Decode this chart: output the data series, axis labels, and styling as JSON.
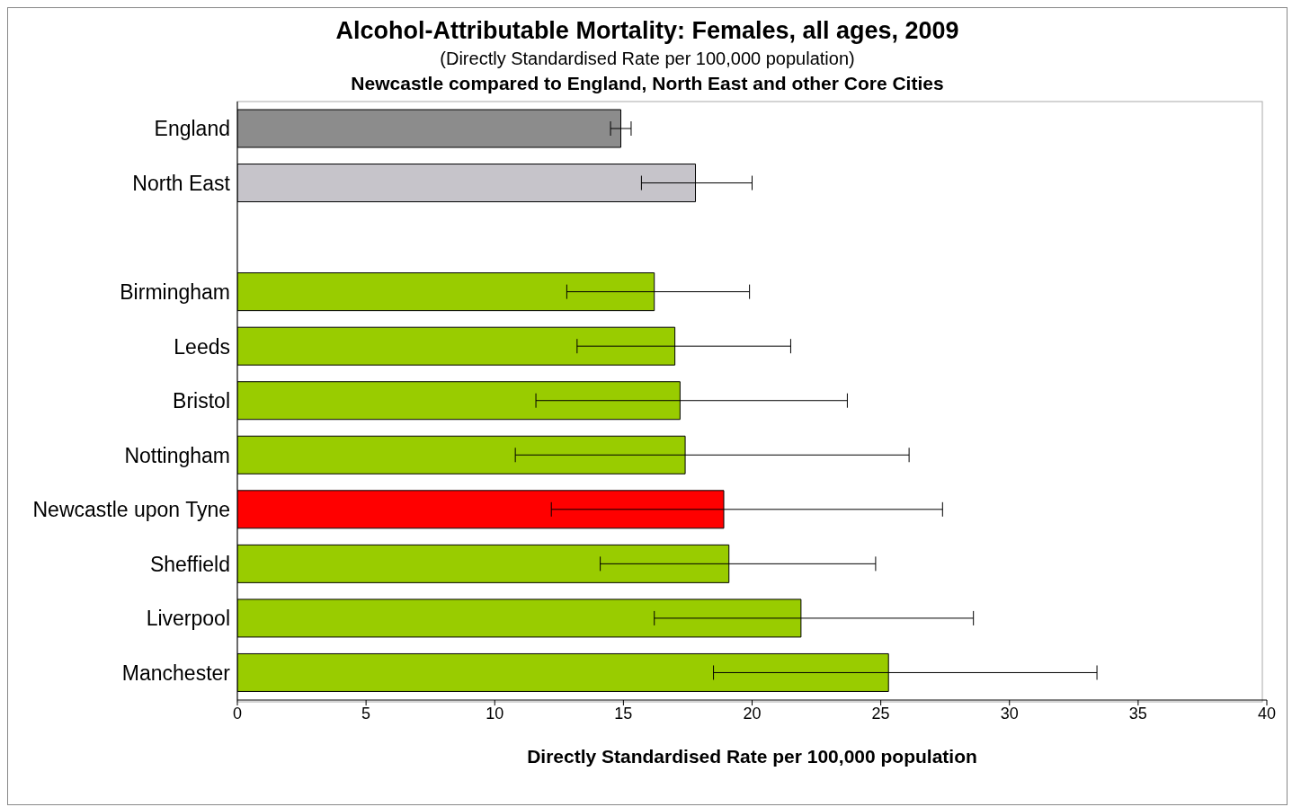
{
  "chart_data": {
    "type": "bar",
    "orientation": "horizontal",
    "title": "Alcohol-Attributable Mortality: Females, all ages, 2009",
    "subtitle": "(Directly Standardised Rate per 100,000 population)",
    "annotations": [
      "Newcastle compared to England, North East and other Core Cities"
    ],
    "xlabel": "Directly Standardised Rate per 100,000 population",
    "categories": [
      "England",
      "North East",
      null,
      "Birmingham",
      "Leeds",
      "Bristol",
      "Nottingham",
      "Newcastle upon Tyne",
      "Sheffield",
      "Liverpool",
      "Manchester"
    ],
    "values": [
      14.9,
      17.8,
      null,
      16.2,
      17.0,
      17.2,
      17.4,
      18.9,
      19.1,
      21.9,
      25.3
    ],
    "errors": [
      [
        14.5,
        15.3
      ],
      [
        15.7,
        20.0
      ],
      null,
      [
        12.8,
        19.9
      ],
      [
        13.2,
        21.5
      ],
      [
        11.6,
        23.7
      ],
      [
        10.8,
        26.1
      ],
      [
        12.2,
        27.4
      ],
      [
        14.1,
        24.8
      ],
      [
        16.2,
        28.6
      ],
      [
        18.5,
        33.4
      ]
    ],
    "colors": [
      "#8c8c8c",
      "#c6c4ca",
      "#99cc00",
      "#99cc00",
      "#99cc00",
      "#99cc00",
      "#99cc00",
      "#ff0000",
      "#99cc00",
      "#99cc00",
      "#99cc00"
    ],
    "xlim": [
      0,
      40
    ],
    "xticks": [
      0,
      5,
      10,
      15,
      20,
      25,
      30,
      35,
      40
    ],
    "grid": false,
    "legend": false
  }
}
